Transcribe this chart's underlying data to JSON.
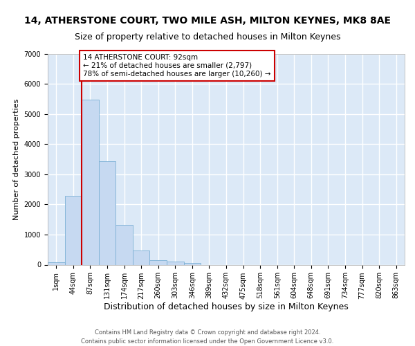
{
  "title1": "14, ATHERSTONE COURT, TWO MILE ASH, MILTON KEYNES, MK8 8AE",
  "title2": "Size of property relative to detached houses in Milton Keynes",
  "xlabel": "Distribution of detached houses by size in Milton Keynes",
  "ylabel": "Number of detached properties",
  "bar_labels": [
    "1sqm",
    "44sqm",
    "87sqm",
    "131sqm",
    "174sqm",
    "217sqm",
    "260sqm",
    "303sqm",
    "346sqm",
    "389sqm",
    "432sqm",
    "475sqm",
    "518sqm",
    "561sqm",
    "604sqm",
    "648sqm",
    "691sqm",
    "734sqm",
    "777sqm",
    "820sqm",
    "863sqm"
  ],
  "bar_values": [
    80,
    2280,
    5470,
    3430,
    1310,
    460,
    160,
    100,
    60,
    0,
    0,
    0,
    0,
    0,
    0,
    0,
    0,
    0,
    0,
    0,
    0
  ],
  "bar_color": "#c6d9f1",
  "bar_edge_color": "#7bafd4",
  "bg_color": "#dce9f7",
  "grid_color": "#ffffff",
  "annotation_text": "14 ATHERSTONE COURT: 92sqm\n← 21% of detached houses are smaller (2,797)\n78% of semi-detached houses are larger (10,260) →",
  "annotation_box_color": "#ffffff",
  "annotation_edge_color": "#cc0000",
  "redline_x": 1.5,
  "ylim": [
    0,
    7000
  ],
  "yticks": [
    0,
    1000,
    2000,
    3000,
    4000,
    5000,
    6000,
    7000
  ],
  "footer": "Contains HM Land Registry data © Crown copyright and database right 2024.\nContains public sector information licensed under the Open Government Licence v3.0.",
  "title1_fontsize": 10,
  "title2_fontsize": 9,
  "xlabel_fontsize": 9,
  "ylabel_fontsize": 8,
  "annotation_fontsize": 7.5,
  "tick_fontsize": 7,
  "footer_fontsize": 6
}
